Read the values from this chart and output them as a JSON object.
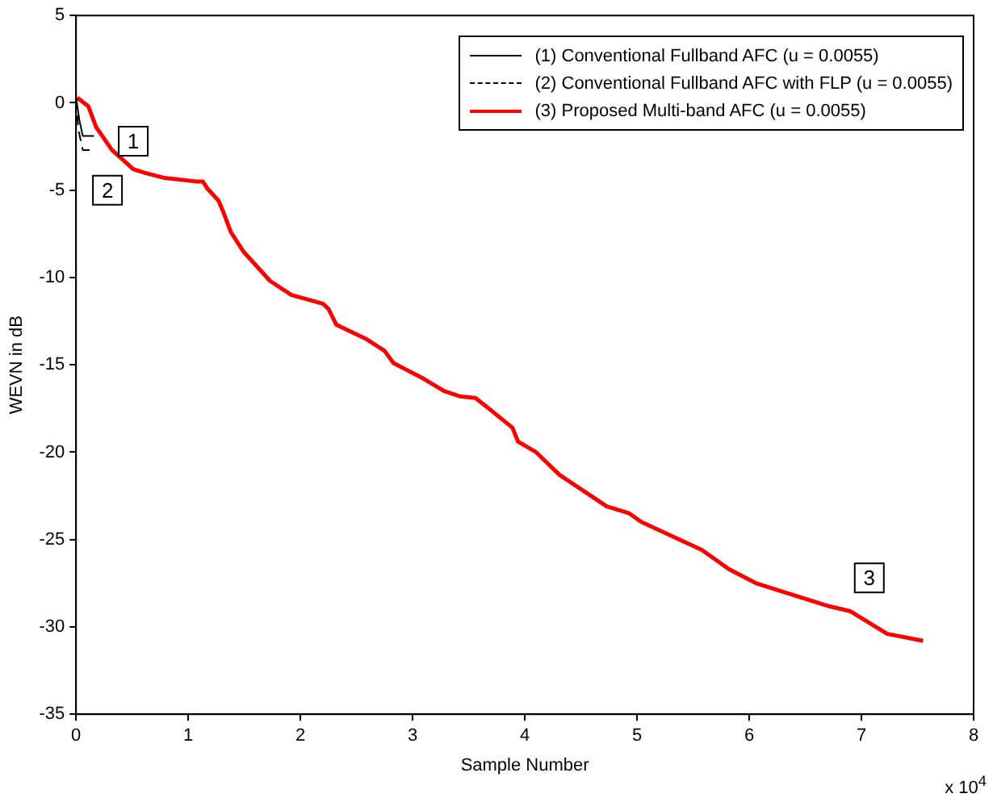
{
  "chart_data": {
    "type": "line",
    "xlabel": "Sample Number",
    "ylabel": "WEVN in dB",
    "xlim": [
      0,
      8
    ],
    "xticks": [
      0,
      1,
      2,
      3,
      4,
      5,
      6,
      7,
      8
    ],
    "ylim": [
      -35,
      5
    ],
    "yticks": [
      -35,
      -30,
      -25,
      -20,
      -15,
      -10,
      -5,
      0,
      5
    ],
    "grid": false,
    "legend": "top right",
    "marker": "none",
    "series": [
      {
        "name": "(1) Conventional Fullband AFC (u = 0.0055)",
        "color": "#000000",
        "line_style": "solid",
        "x": [
          0,
          0.03,
          0.06,
          0.16
        ],
        "values": [
          0.3,
          -1.0,
          -1.9,
          -1.9
        ]
      },
      {
        "name": "(2) Conventional Fullband AFC with FLP (u = 0.0055)",
        "color": "#000000",
        "line_style": "dashed",
        "x": [
          0,
          0.02,
          0.06,
          0.16
        ],
        "values": [
          0.2,
          -1.5,
          -2.7,
          -2.7
        ]
      },
      {
        "name": "(3) Proposed Multi-band AFC (u = 0.0055)",
        "color": "#ff0000",
        "line_style": "solid",
        "x": [
          0.01,
          0.11,
          0.18,
          0.32,
          0.51,
          0.61,
          0.79,
          1.07,
          1.13,
          1.17,
          1.27,
          1.31,
          1.38,
          1.49,
          1.73,
          1.92,
          2.2,
          2.25,
          2.32,
          2.58,
          2.75,
          2.83,
          3.1,
          3.28,
          3.42,
          3.56,
          3.66,
          3.89,
          3.94,
          4.1,
          4.31,
          4.73,
          4.93,
          5.04,
          5.58,
          5.82,
          6.06,
          6.7,
          6.9,
          7.23,
          7.55
        ],
        "values": [
          0.3,
          -0.2,
          -1.4,
          -2.7,
          -3.8,
          -4.0,
          -4.3,
          -4.5,
          -4.5,
          -4.9,
          -5.6,
          -6.2,
          -7.4,
          -8.5,
          -10.2,
          -11.0,
          -11.5,
          -11.8,
          -12.7,
          -13.5,
          -14.2,
          -14.9,
          -15.8,
          -16.5,
          -16.8,
          -16.9,
          -17.4,
          -18.6,
          -19.4,
          -20.0,
          -21.3,
          -23.1,
          -23.5,
          -24.0,
          -25.6,
          -26.7,
          -27.5,
          -28.8,
          -29.1,
          -30.4,
          -30.8
        ]
      }
    ],
    "annotations": [
      {
        "text": "1",
        "x": 0.51,
        "y": -2.2
      },
      {
        "text": "2",
        "x": 0.28,
        "y": -5.0
      },
      {
        "text": "3",
        "x": 7.07,
        "y": -27.2
      },
      "x 10$^{4}$"
    ]
  }
}
